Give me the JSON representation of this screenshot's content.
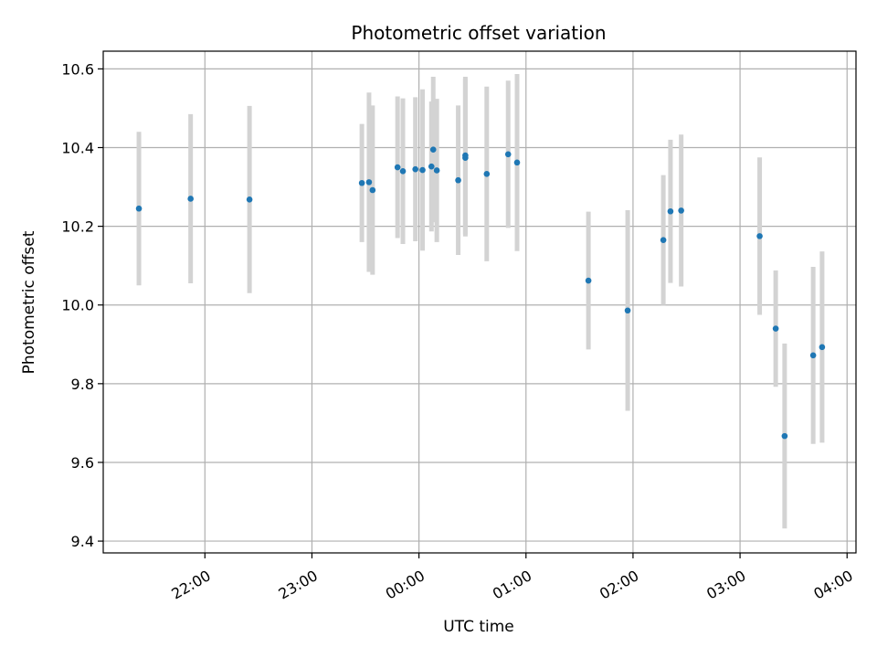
{
  "chart_data": {
    "type": "scatter",
    "title": "Photometric offset variation",
    "xlabel": "UTC time",
    "ylabel": "Photometric offset",
    "x_unit": "UTC",
    "xlim": [
      "21:03",
      "04:05"
    ],
    "ylim": [
      9.37,
      10.645
    ],
    "grid": true,
    "x_ticks": [
      {
        "time": "22:00",
        "label": "22:00"
      },
      {
        "time": "23:00",
        "label": "23:00"
      },
      {
        "time": "00:00",
        "label": "00:00"
      },
      {
        "time": "01:00",
        "label": "01:00"
      },
      {
        "time": "02:00",
        "label": "02:00"
      },
      {
        "time": "03:00",
        "label": "03:00"
      },
      {
        "time": "04:00",
        "label": "04:00"
      }
    ],
    "y_ticks": [
      {
        "value": 9.4,
        "label": "9.4"
      },
      {
        "value": 9.6,
        "label": "9.6"
      },
      {
        "value": 9.8,
        "label": "9.8"
      },
      {
        "value": 10.0,
        "label": "10.0"
      },
      {
        "value": 10.2,
        "label": "10.2"
      },
      {
        "value": 10.4,
        "label": "10.4"
      },
      {
        "value": 10.6,
        "label": "10.6"
      }
    ],
    "colors": {
      "point": "#1f77b4",
      "errorbar": "#d3d3d3",
      "grid": "#b0b0b0",
      "axis": "#000000"
    },
    "series": [
      {
        "points": [
          {
            "t": "21:23",
            "y": 10.245,
            "err": 0.195
          },
          {
            "t": "21:52",
            "y": 10.27,
            "err": 0.215
          },
          {
            "t": "22:25",
            "y": 10.268,
            "err": 0.238
          },
          {
            "t": "23:28",
            "y": 10.31,
            "err": 0.15
          },
          {
            "t": "23:32",
            "y": 10.312,
            "err": 0.228
          },
          {
            "t": "23:34",
            "y": 10.292,
            "err": 0.215
          },
          {
            "t": "23:48",
            "y": 10.35,
            "err": 0.18
          },
          {
            "t": "23:51",
            "y": 10.34,
            "err": 0.185
          },
          {
            "t": "23:58",
            "y": 10.345,
            "err": 0.183
          },
          {
            "t": "00:02",
            "y": 10.343,
            "err": 0.205
          },
          {
            "t": "00:07",
            "y": 10.352,
            "err": 0.165
          },
          {
            "t": "00:08",
            "y": 10.395,
            "err": 0.185
          },
          {
            "t": "00:10",
            "y": 10.342,
            "err": 0.182
          },
          {
            "t": "00:22",
            "y": 10.317,
            "err": 0.19
          },
          {
            "t": "00:26",
            "y": 10.38,
            "err": 0.2
          },
          {
            "t": "00:26",
            "y": 10.374,
            "err": 0.2
          },
          {
            "t": "00:38",
            "y": 10.333,
            "err": 0.222
          },
          {
            "t": "00:50",
            "y": 10.383,
            "err": 0.187
          },
          {
            "t": "00:55",
            "y": 10.362,
            "err": 0.225
          },
          {
            "t": "01:35",
            "y": 10.062,
            "err": 0.175
          },
          {
            "t": "01:57",
            "y": 9.986,
            "err": 0.255
          },
          {
            "t": "02:17",
            "y": 10.165,
            "err": 0.165
          },
          {
            "t": "02:21",
            "y": 10.238,
            "err": 0.182
          },
          {
            "t": "02:27",
            "y": 10.24,
            "err": 0.193
          },
          {
            "t": "03:11",
            "y": 10.175,
            "err": 0.2
          },
          {
            "t": "03:20",
            "y": 9.94,
            "err": 0.148
          },
          {
            "t": "03:25",
            "y": 9.667,
            "err": 0.235
          },
          {
            "t": "03:41",
            "y": 9.872,
            "err": 0.225
          },
          {
            "t": "03:46",
            "y": 9.893,
            "err": 0.243
          }
        ]
      }
    ]
  }
}
